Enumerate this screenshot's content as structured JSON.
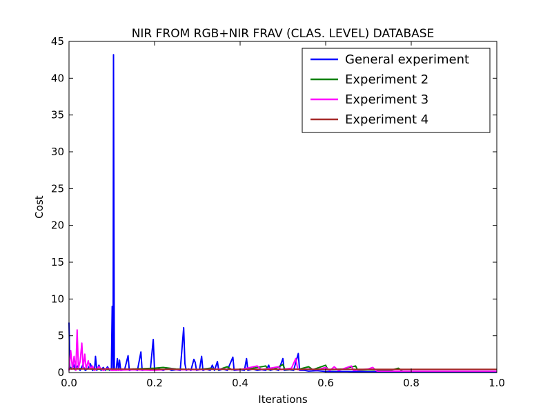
{
  "chart_data": {
    "type": "line",
    "title": "NIR FROM RGB+NIR FRAV (CLAS. LEVEL) DATABASE",
    "xlabel": "Iterations",
    "ylabel": "Cost",
    "xlim": [
      0.0,
      1.0
    ],
    "ylim": [
      0,
      45
    ],
    "xticks": [
      "0.0",
      "0.2",
      "0.4",
      "0.6",
      "0.8",
      "1.0"
    ],
    "yticks": [
      "0",
      "5",
      "10",
      "15",
      "20",
      "25",
      "30",
      "35",
      "40",
      "45"
    ],
    "grid": false,
    "legend_position": "top-right",
    "series": [
      {
        "name": "General experiment",
        "color": "#0000ff",
        "points": [
          [
            0.0,
            6.8
          ],
          [
            0.002,
            0.8
          ],
          [
            0.006,
            0.5
          ],
          [
            0.01,
            1.2
          ],
          [
            0.014,
            0.4
          ],
          [
            0.02,
            0.9
          ],
          [
            0.026,
            0.3
          ],
          [
            0.032,
            1.0
          ],
          [
            0.038,
            0.3
          ],
          [
            0.045,
            0.6
          ],
          [
            0.05,
            1.2
          ],
          [
            0.055,
            0.3
          ],
          [
            0.06,
            0.6
          ],
          [
            0.062,
            2.2
          ],
          [
            0.065,
            0.3
          ],
          [
            0.07,
            1.0
          ],
          [
            0.075,
            0.3
          ],
          [
            0.08,
            0.7
          ],
          [
            0.085,
            0.3
          ],
          [
            0.09,
            0.8
          ],
          [
            0.095,
            0.3
          ],
          [
            0.099,
            0.5
          ],
          [
            0.101,
            9.0
          ],
          [
            0.103,
            0.6
          ],
          [
            0.104,
            43.2
          ],
          [
            0.106,
            0.5
          ],
          [
            0.11,
            0.3
          ],
          [
            0.113,
            1.9
          ],
          [
            0.116,
            0.3
          ],
          [
            0.118,
            1.7
          ],
          [
            0.121,
            0.3
          ],
          [
            0.13,
            0.4
          ],
          [
            0.138,
            2.3
          ],
          [
            0.141,
            0.3
          ],
          [
            0.15,
            0.5
          ],
          [
            0.16,
            0.3
          ],
          [
            0.168,
            2.8
          ],
          [
            0.171,
            0.3
          ],
          [
            0.18,
            0.4
          ],
          [
            0.19,
            0.3
          ],
          [
            0.197,
            4.5
          ],
          [
            0.2,
            0.3
          ],
          [
            0.21,
            0.5
          ],
          [
            0.22,
            0.3
          ],
          [
            0.23,
            0.6
          ],
          [
            0.24,
            0.3
          ],
          [
            0.25,
            0.4
          ],
          [
            0.26,
            0.3
          ],
          [
            0.268,
            6.1
          ],
          [
            0.271,
            1.2
          ],
          [
            0.274,
            0.3
          ],
          [
            0.28,
            0.5
          ],
          [
            0.285,
            0.3
          ],
          [
            0.292,
            1.8
          ],
          [
            0.295,
            1.4
          ],
          [
            0.298,
            0.3
          ],
          [
            0.305,
            0.4
          ],
          [
            0.31,
            2.2
          ],
          [
            0.313,
            0.3
          ],
          [
            0.32,
            0.5
          ],
          [
            0.33,
            0.3
          ],
          [
            0.335,
            1.0
          ],
          [
            0.34,
            0.3
          ],
          [
            0.347,
            1.5
          ],
          [
            0.35,
            0.3
          ],
          [
            0.36,
            0.5
          ],
          [
            0.37,
            0.3
          ],
          [
            0.383,
            2.1
          ],
          [
            0.386,
            0.3
          ],
          [
            0.4,
            0.4
          ],
          [
            0.41,
            0.3
          ],
          [
            0.415,
            1.9
          ],
          [
            0.418,
            0.3
          ],
          [
            0.43,
            0.5
          ],
          [
            0.44,
            0.3
          ],
          [
            0.45,
            0.4
          ],
          [
            0.46,
            0.3
          ],
          [
            0.467,
            1.0
          ],
          [
            0.47,
            0.3
          ],
          [
            0.48,
            0.5
          ],
          [
            0.49,
            0.3
          ],
          [
            0.5,
            1.9
          ],
          [
            0.503,
            0.3
          ],
          [
            0.515,
            0.4
          ],
          [
            0.525,
            0.3
          ],
          [
            0.536,
            2.6
          ],
          [
            0.539,
            0.3
          ],
          [
            0.55,
            0.3
          ],
          [
            0.56,
            0.2
          ],
          [
            0.58,
            0.25
          ],
          [
            0.6,
            0.15
          ],
          [
            0.65,
            0.15
          ],
          [
            0.7,
            0.12
          ],
          [
            0.75,
            0.12
          ],
          [
            0.8,
            0.1
          ],
          [
            0.9,
            0.1
          ],
          [
            1.0,
            0.1
          ]
        ]
      },
      {
        "name": "Experiment 2",
        "color": "#008000",
        "points": [
          [
            0.0,
            0.6
          ],
          [
            0.05,
            0.5
          ],
          [
            0.1,
            0.4
          ],
          [
            0.15,
            0.5
          ],
          [
            0.2,
            0.6
          ],
          [
            0.22,
            0.7
          ],
          [
            0.25,
            0.5
          ],
          [
            0.3,
            0.4
          ],
          [
            0.33,
            0.6
          ],
          [
            0.35,
            0.4
          ],
          [
            0.37,
            0.8
          ],
          [
            0.38,
            0.4
          ],
          [
            0.42,
            0.5
          ],
          [
            0.46,
            0.9
          ],
          [
            0.465,
            0.4
          ],
          [
            0.48,
            0.5
          ],
          [
            0.5,
            1.1
          ],
          [
            0.505,
            0.4
          ],
          [
            0.54,
            0.5
          ],
          [
            0.56,
            0.8
          ],
          [
            0.57,
            0.4
          ],
          [
            0.6,
            1.0
          ],
          [
            0.605,
            0.4
          ],
          [
            0.64,
            0.5
          ],
          [
            0.67,
            0.9
          ],
          [
            0.675,
            0.3
          ],
          [
            0.7,
            0.4
          ],
          [
            0.75,
            0.3
          ],
          [
            0.77,
            0.6
          ],
          [
            0.78,
            0.2
          ],
          [
            0.8,
            0.2
          ],
          [
            0.9,
            0.2
          ],
          [
            1.0,
            0.2
          ]
        ]
      },
      {
        "name": "Experiment 3",
        "color": "#ff00ff",
        "points": [
          [
            0.0,
            0.3
          ],
          [
            0.004,
            3.0
          ],
          [
            0.008,
            0.5
          ],
          [
            0.012,
            2.2
          ],
          [
            0.016,
            0.3
          ],
          [
            0.019,
            5.8
          ],
          [
            0.022,
            0.6
          ],
          [
            0.026,
            1.5
          ],
          [
            0.03,
            4.0
          ],
          [
            0.033,
            0.6
          ],
          [
            0.037,
            2.5
          ],
          [
            0.04,
            0.5
          ],
          [
            0.045,
            1.6
          ],
          [
            0.05,
            0.5
          ],
          [
            0.055,
            0.9
          ],
          [
            0.06,
            0.3
          ],
          [
            0.07,
            0.8
          ],
          [
            0.08,
            0.3
          ],
          [
            0.09,
            0.6
          ],
          [
            0.1,
            0.3
          ],
          [
            0.15,
            0.4
          ],
          [
            0.2,
            0.3
          ],
          [
            0.24,
            0.5
          ],
          [
            0.25,
            0.4
          ],
          [
            0.3,
            0.4
          ],
          [
            0.35,
            0.5
          ],
          [
            0.4,
            0.4
          ],
          [
            0.44,
            0.9
          ],
          [
            0.45,
            0.4
          ],
          [
            0.49,
            0.8
          ],
          [
            0.495,
            0.4
          ],
          [
            0.52,
            0.6
          ],
          [
            0.53,
            1.9
          ],
          [
            0.535,
            0.4
          ],
          [
            0.56,
            0.5
          ],
          [
            0.58,
            0.4
          ],
          [
            0.6,
            0.7
          ],
          [
            0.61,
            0.3
          ],
          [
            0.62,
            0.8
          ],
          [
            0.63,
            0.3
          ],
          [
            0.66,
            0.9
          ],
          [
            0.665,
            0.3
          ],
          [
            0.7,
            0.5
          ],
          [
            0.71,
            0.7
          ],
          [
            0.72,
            0.2
          ],
          [
            0.75,
            0.2
          ],
          [
            1.0,
            0.2
          ]
        ]
      },
      {
        "name": "Experiment 4",
        "color": "#a52a2a",
        "points": [
          [
            0.0,
            0.5
          ],
          [
            0.1,
            0.5
          ],
          [
            0.2,
            0.45
          ],
          [
            0.3,
            0.45
          ],
          [
            0.4,
            0.45
          ],
          [
            0.5,
            0.45
          ],
          [
            0.6,
            0.45
          ],
          [
            0.7,
            0.45
          ],
          [
            0.8,
            0.45
          ],
          [
            0.9,
            0.45
          ],
          [
            1.0,
            0.45
          ]
        ]
      }
    ]
  }
}
